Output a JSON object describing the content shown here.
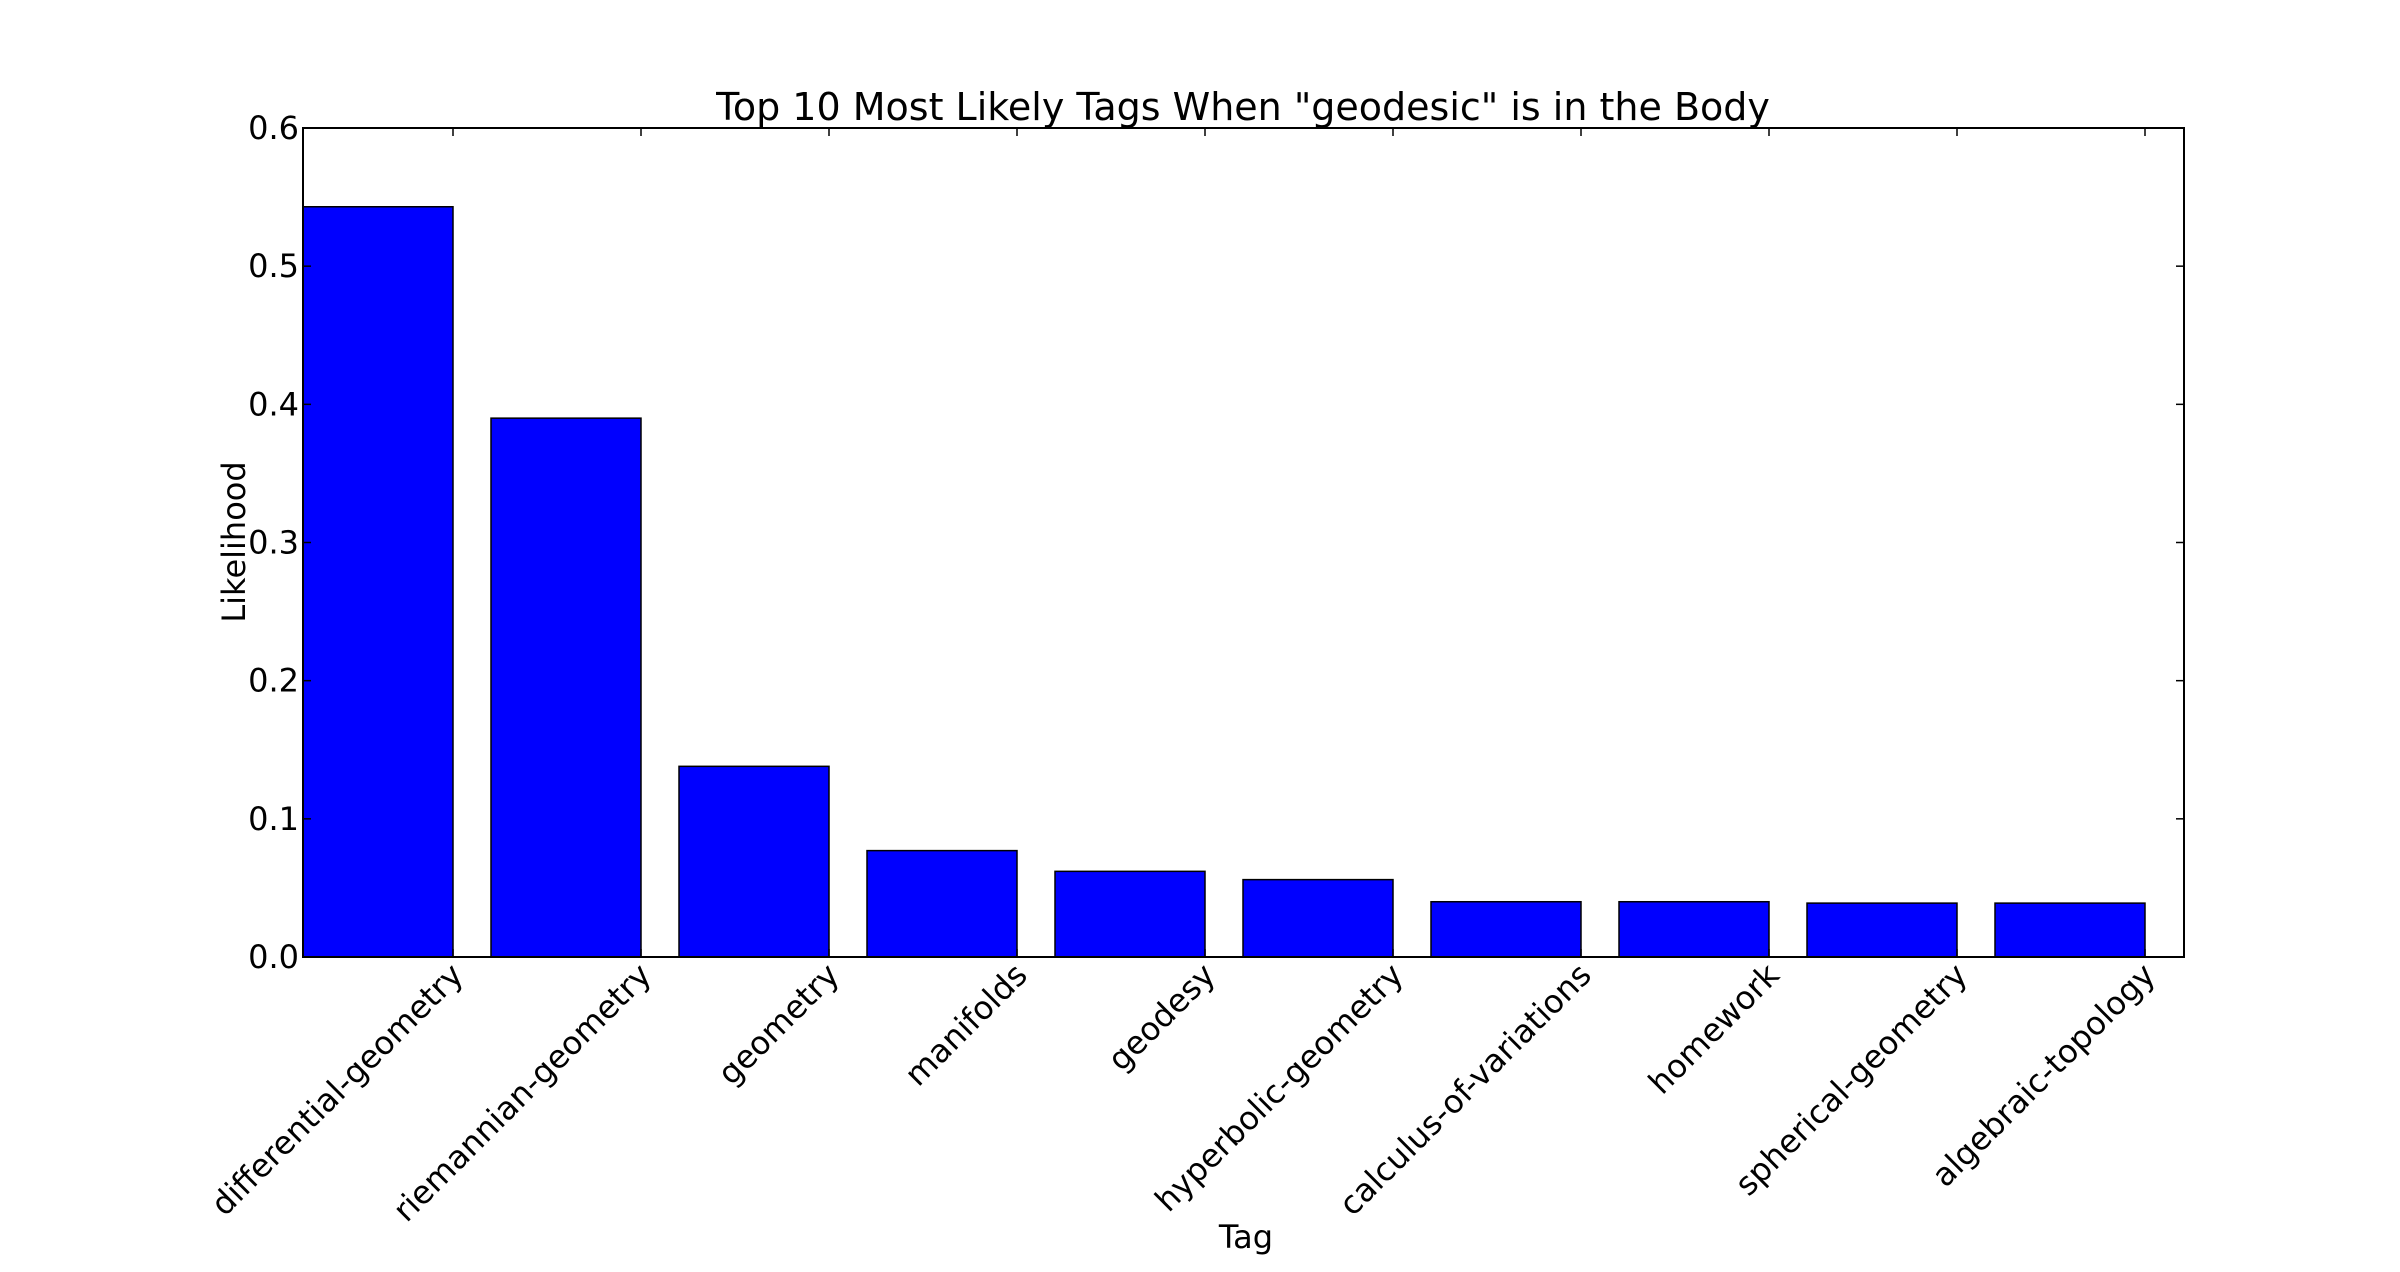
{
  "chart_data": {
    "type": "bar",
    "title": "Top 10 Most Likely Tags When \"geodesic\" is in the Body",
    "xlabel": "Tag",
    "ylabel": "Likelihood",
    "categories": [
      "differential-geometry",
      "riemannian-geometry",
      "geometry",
      "manifolds",
      "geodesy",
      "hyperbolic-geometry",
      "calculus-of-variations",
      "homework",
      "spherical-geometry",
      "algebraic-topology"
    ],
    "values": [
      0.543,
      0.39,
      0.138,
      0.077,
      0.062,
      0.056,
      0.04,
      0.04,
      0.039,
      0.039
    ],
    "ylim": [
      0,
      0.6
    ],
    "yticks": [
      "0.0",
      "0.1",
      "0.2",
      "0.3",
      "0.4",
      "0.5",
      "0.6"
    ],
    "grid": false,
    "legend": "none",
    "bar_color": "#0000ff"
  }
}
